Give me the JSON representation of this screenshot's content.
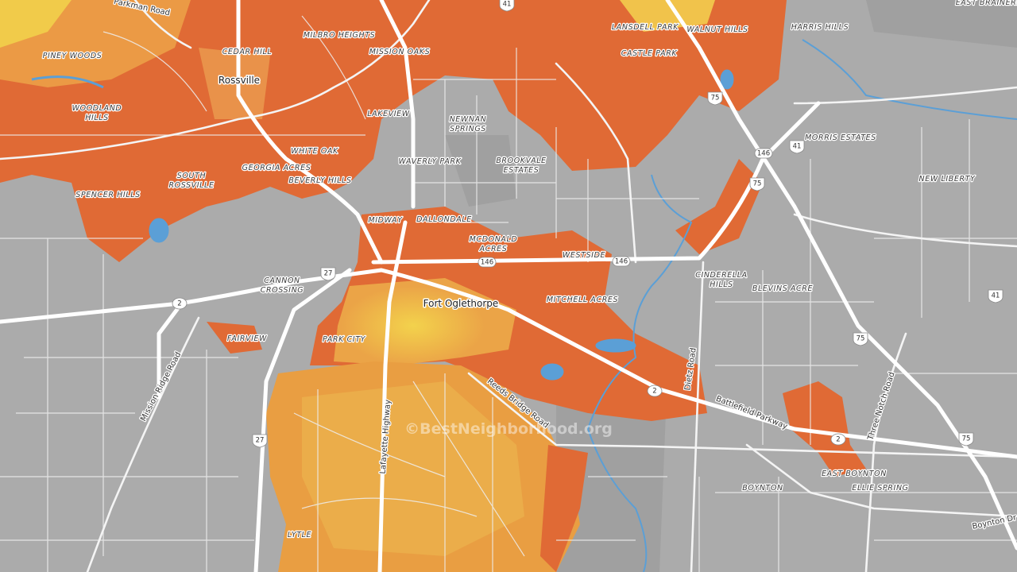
{
  "map": {
    "places": [
      "MILBRO HEIGHTS",
      "MISSION OAKS",
      "LANSDELL PARK",
      "WALNUT HILLS",
      "HARRIS HILLS",
      "EAST BRAINERD",
      "CASTLE PARK",
      "CEDAR HILL",
      "PINEY WOODS",
      [
        "WOODLAND",
        "HILLS"
      ],
      "LAKEVIEW",
      [
        "NEWNAN",
        "SPRINGS"
      ],
      "WHITE OAK",
      "GEORGIA ACRES",
      "MORRIS ESTATES",
      [
        "SOUTH",
        "ROSSVILLE"
      ],
      "WAVERLY PARK",
      [
        "BROOKVALE",
        "ESTATES"
      ],
      "BEVERLY HILLS",
      "NEW LIBERTY",
      "SPENCER HILLS",
      "MIDWAY",
      "DALLONDALE",
      [
        "MCDONALD",
        "ACRES"
      ],
      "WESTSIDE",
      [
        "CINDERELLA",
        "HILLS"
      ],
      "BLEVINS ACRE",
      [
        "CANNON",
        "CROSSING"
      ],
      "MITCHELL ACRES",
      "FAIRVIEW",
      "PARK CITY",
      "EAST BOYNTON",
      "ELLIE SPRING",
      "BOYNTON",
      "LYTLE"
    ],
    "towns": [
      "Rossville",
      "Fort Oglethorpe"
    ],
    "roads": [
      "Parkman Road",
      "Mission Ridge Road",
      "Lafayette Highway",
      "Reeds Bridge Road",
      "Dietz Road",
      "Battlefield Parkway",
      "Three Notch Road",
      "Boynton Dr"
    ],
    "shields": [
      "41",
      "41",
      "41",
      "75",
      "75",
      "75",
      "75",
      "146",
      "146",
      "146",
      "27",
      "27",
      "2",
      "2",
      "2"
    ],
    "watermark": "©BestNeighborhood.org"
  }
}
